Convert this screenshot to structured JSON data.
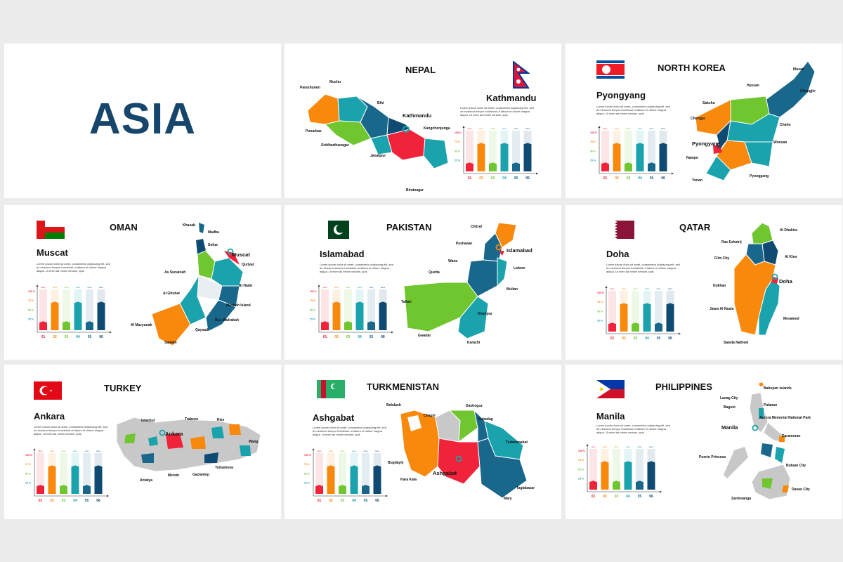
{
  "title": "ASIA",
  "lorem": "Lorem ipsum dolor sit amet, consectetur adipiscing elit, sed do eiusmod tempor incididunt ut labore et dolore magna aliqua. Ut enim ad minim veniam, quis",
  "chart": {
    "y_ticks": [
      "100 %",
      "75 %",
      "50 %",
      "25 %"
    ],
    "categories": [
      "01",
      "02",
      "03",
      "04",
      "05",
      "06"
    ],
    "values": [
      22,
      70,
      22,
      70,
      22,
      70
    ],
    "header": "name",
    "colors": [
      "#f0233a",
      "#f9890d",
      "#6fc62f",
      "#1aa3ad",
      "#19688c",
      "#0f4a72"
    ]
  },
  "slides": [
    {
      "country": "NEPAL",
      "capital": "Kathmandu",
      "cities": [
        "Muchu",
        "Parashuram",
        "Bihi",
        "Kathmandu",
        "Kangchenjunga",
        "Punarbas",
        "Siddharthanagar",
        "Janakpur",
        "Biratnagar"
      ]
    },
    {
      "country": "NORTH KOREA",
      "capital": "Pyongyang",
      "cities": [
        "Musan",
        "Hyesan",
        "Chongjin",
        "Sakchu",
        "Chongju",
        "Chaho",
        "Pyongyang",
        "Wonsan",
        "Nampo",
        "Pyonggang",
        "Yonan"
      ]
    },
    {
      "country": "OMAN",
      "capital": "Muscat",
      "cities": [
        "Khasab",
        "Madha",
        "Sohar",
        "Muscat",
        "Quriyat",
        "As Sunainah",
        "Al Hadd",
        "Al Ghubar",
        "Masirah Island",
        "Ras Madrakah",
        "Al Mazyunah",
        "Qaysad",
        "Salalah"
      ]
    },
    {
      "country": "PAKISTAN",
      "capital": "Islamabad",
      "cities": [
        "Chitral",
        "Peshawar",
        "Islamabad",
        "Wana",
        "Lahore",
        "Quetta",
        "Multan",
        "Taftan",
        "Khairpur",
        "Gwadar",
        "Karachi"
      ]
    },
    {
      "country": "QATAR",
      "capital": "Doha",
      "cities": [
        "Al Dhakira",
        "Ras Eshairij",
        "Film City",
        "Al Khor",
        "Doha",
        "Dukhan",
        "Jaww Al Nasla",
        "Mesaieed",
        "Sawda Natheel"
      ]
    },
    {
      "country": "TURKEY",
      "capital": "Ankara",
      "cities": [
        "Istanbul",
        "Trabzon",
        "Rize",
        "Ankara",
        "Wang",
        "Yuksekova",
        "Antalya",
        "Mersin",
        "Gaziantep"
      ]
    },
    {
      "country": "TURKMENISTAN",
      "capital": "Ashgabat",
      "cities": [
        "Bekdash",
        "Chagyl",
        "Dashoguz",
        "Gubadag",
        "Turkmenabat",
        "Bugdayly",
        "Ashgabat",
        "Kara Kala",
        "Tagtabazar",
        "Mary"
      ]
    },
    {
      "country": "PHILIPPINES",
      "capital": "Manila",
      "cities": [
        "Babuyan islands",
        "Laoag City",
        "Palanan",
        "Baguio",
        "Manila",
        "Aurora Memorial National Park",
        "Caramoran",
        "Puerto Princesa",
        "Butuan City",
        "Davao City",
        "Zamboanga"
      ]
    }
  ]
}
